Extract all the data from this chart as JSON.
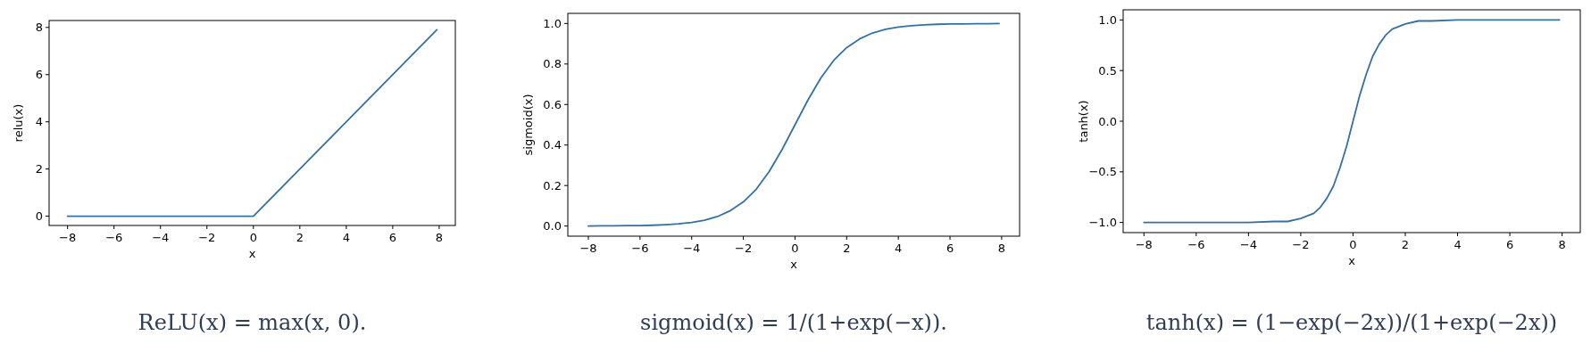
{
  "chart_data": [
    {
      "type": "line",
      "xlabel": "x",
      "ylabel": "relu(x)",
      "annotations": [
        "ReLU(x) = max(x, 0)."
      ],
      "series": [
        {
          "color": "#3470a3",
          "x": [
            -8,
            0,
            7.9
          ],
          "values": [
            0,
            0,
            7.9
          ]
        }
      ],
      "xlim": [
        -8.795,
        8.695
      ],
      "ylim": [
        -0.395,
        8.295
      ],
      "xticks": [
        {
          "value": -8,
          "label": "−8"
        },
        {
          "value": -6,
          "label": "−6"
        },
        {
          "value": -4,
          "label": "−4"
        },
        {
          "value": -2,
          "label": "−2"
        },
        0,
        2,
        4,
        6,
        8
      ],
      "yticks": [
        0,
        2,
        4,
        6,
        8
      ]
    },
    {
      "type": "line",
      "xlabel": "x",
      "ylabel": "sigmoid(x)",
      "annotations": [
        "sigmoid(x) = 1/(1+exp(−x))."
      ],
      "series": [
        {
          "color": "#3470a3",
          "x": [
            -8,
            -7.5,
            -7,
            -6.5,
            -6,
            -5.5,
            -5,
            -4.5,
            -4,
            -3.5,
            -3,
            -2.5,
            -2,
            -1.5,
            -1,
            -0.5,
            0,
            0.5,
            1,
            1.5,
            2,
            2.5,
            3,
            3.5,
            4,
            4.5,
            5,
            5.5,
            6,
            6.5,
            7,
            7.5,
            7.9
          ],
          "values": [
            0.0,
            0.001,
            0.001,
            0.002,
            0.002,
            0.004,
            0.007,
            0.011,
            0.018,
            0.029,
            0.047,
            0.076,
            0.119,
            0.182,
            0.269,
            0.378,
            0.5,
            0.622,
            0.731,
            0.818,
            0.881,
            0.924,
            0.953,
            0.971,
            0.982,
            0.989,
            0.993,
            0.996,
            0.998,
            0.998,
            0.999,
            0.999,
            1.0
          ]
        }
      ],
      "xlim": [
        -8.795,
        8.695
      ],
      "ylim": [
        -0.05,
        1.05
      ],
      "xticks": [
        {
          "value": -8,
          "label": "−8"
        },
        {
          "value": -6,
          "label": "−6"
        },
        {
          "value": -4,
          "label": "−4"
        },
        {
          "value": -2,
          "label": "−2"
        },
        0,
        2,
        4,
        6,
        8
      ],
      "yticks": [
        {
          "value": 0,
          "label": "0.0"
        },
        0.2,
        0.4,
        0.6,
        0.8,
        {
          "value": 1,
          "label": "1.0"
        }
      ]
    },
    {
      "type": "line",
      "xlabel": "x",
      "ylabel": "tanh(x)",
      "annotations": [
        "tanh(x) = (1−exp(−2x))/(1+exp(−2x))"
      ],
      "series": [
        {
          "color": "#3470a3",
          "x": [
            -8,
            -4,
            -3,
            -2.5,
            -2,
            -1.5,
            -1.25,
            -1,
            -0.75,
            -0.5,
            -0.25,
            0,
            0.25,
            0.5,
            0.75,
            1,
            1.25,
            1.5,
            2,
            2.5,
            3,
            4,
            7.9
          ],
          "values": [
            -1.0,
            -1.0,
            -0.99,
            -0.99,
            -0.96,
            -0.91,
            -0.85,
            -0.76,
            -0.64,
            -0.46,
            -0.25,
            0,
            0.25,
            0.46,
            0.64,
            0.76,
            0.85,
            0.91,
            0.96,
            0.99,
            0.99,
            1.0,
            1.0
          ]
        }
      ],
      "xlim": [
        -8.795,
        8.695
      ],
      "ylim": [
        -1.1,
        1.1
      ],
      "xticks": [
        {
          "value": -8,
          "label": "−8"
        },
        {
          "value": -6,
          "label": "−6"
        },
        {
          "value": -4,
          "label": "−4"
        },
        {
          "value": -2,
          "label": "−2"
        },
        0,
        2,
        4,
        6,
        8
      ],
      "yticks": [
        {
          "value": -1,
          "label": "−1.0"
        },
        {
          "value": -0.5,
          "label": "−0.5"
        },
        {
          "value": 0,
          "label": "0.0"
        },
        0.5,
        {
          "value": 1,
          "label": "1.0"
        }
      ]
    }
  ]
}
